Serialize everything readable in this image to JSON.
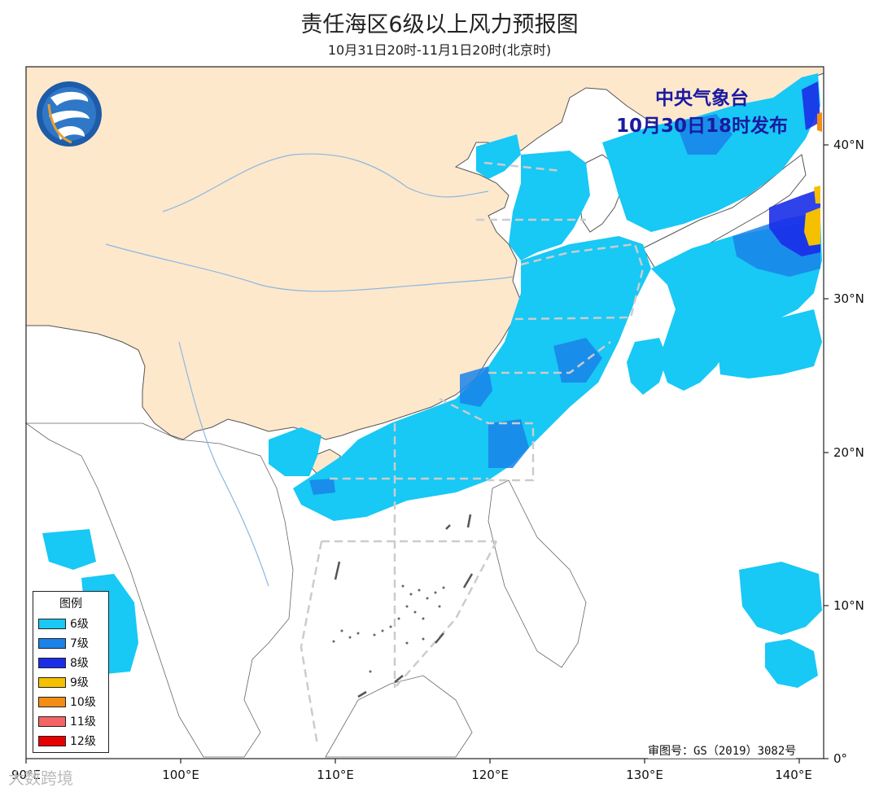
{
  "title": "责任海区6级以上风力预报图",
  "subtitle": "10月31日20时-11月1日20时(北京时)",
  "agency": {
    "name": "中央气象台",
    "issued": "10月30日18时发布"
  },
  "legend": {
    "title": "图例",
    "items": [
      {
        "label": "6级",
        "color": "#18c8f5"
      },
      {
        "label": "7级",
        "color": "#1a82e8"
      },
      {
        "label": "8级",
        "color": "#1a2ee8"
      },
      {
        "label": "9级",
        "color": "#f5c000"
      },
      {
        "label": "10级",
        "color": "#f58c14"
      },
      {
        "label": "11级",
        "color": "#f56464"
      },
      {
        "label": "12级",
        "color": "#e60000"
      }
    ]
  },
  "axes": {
    "x_ticks": [
      "90°E",
      "100°E",
      "110°E",
      "120°E",
      "130°E",
      "140°E"
    ],
    "y_ticks": [
      "0°",
      "10°N",
      "20°N",
      "30°N",
      "40°N"
    ]
  },
  "review_number": "审图号：GS（2019）3082号",
  "watermark": "大数跨境",
  "colors": {
    "land_china": "#fde8cc",
    "sea": "#ffffff",
    "border": "#555555",
    "river": "#8ab8e0",
    "zone_line": "#cccccc"
  }
}
